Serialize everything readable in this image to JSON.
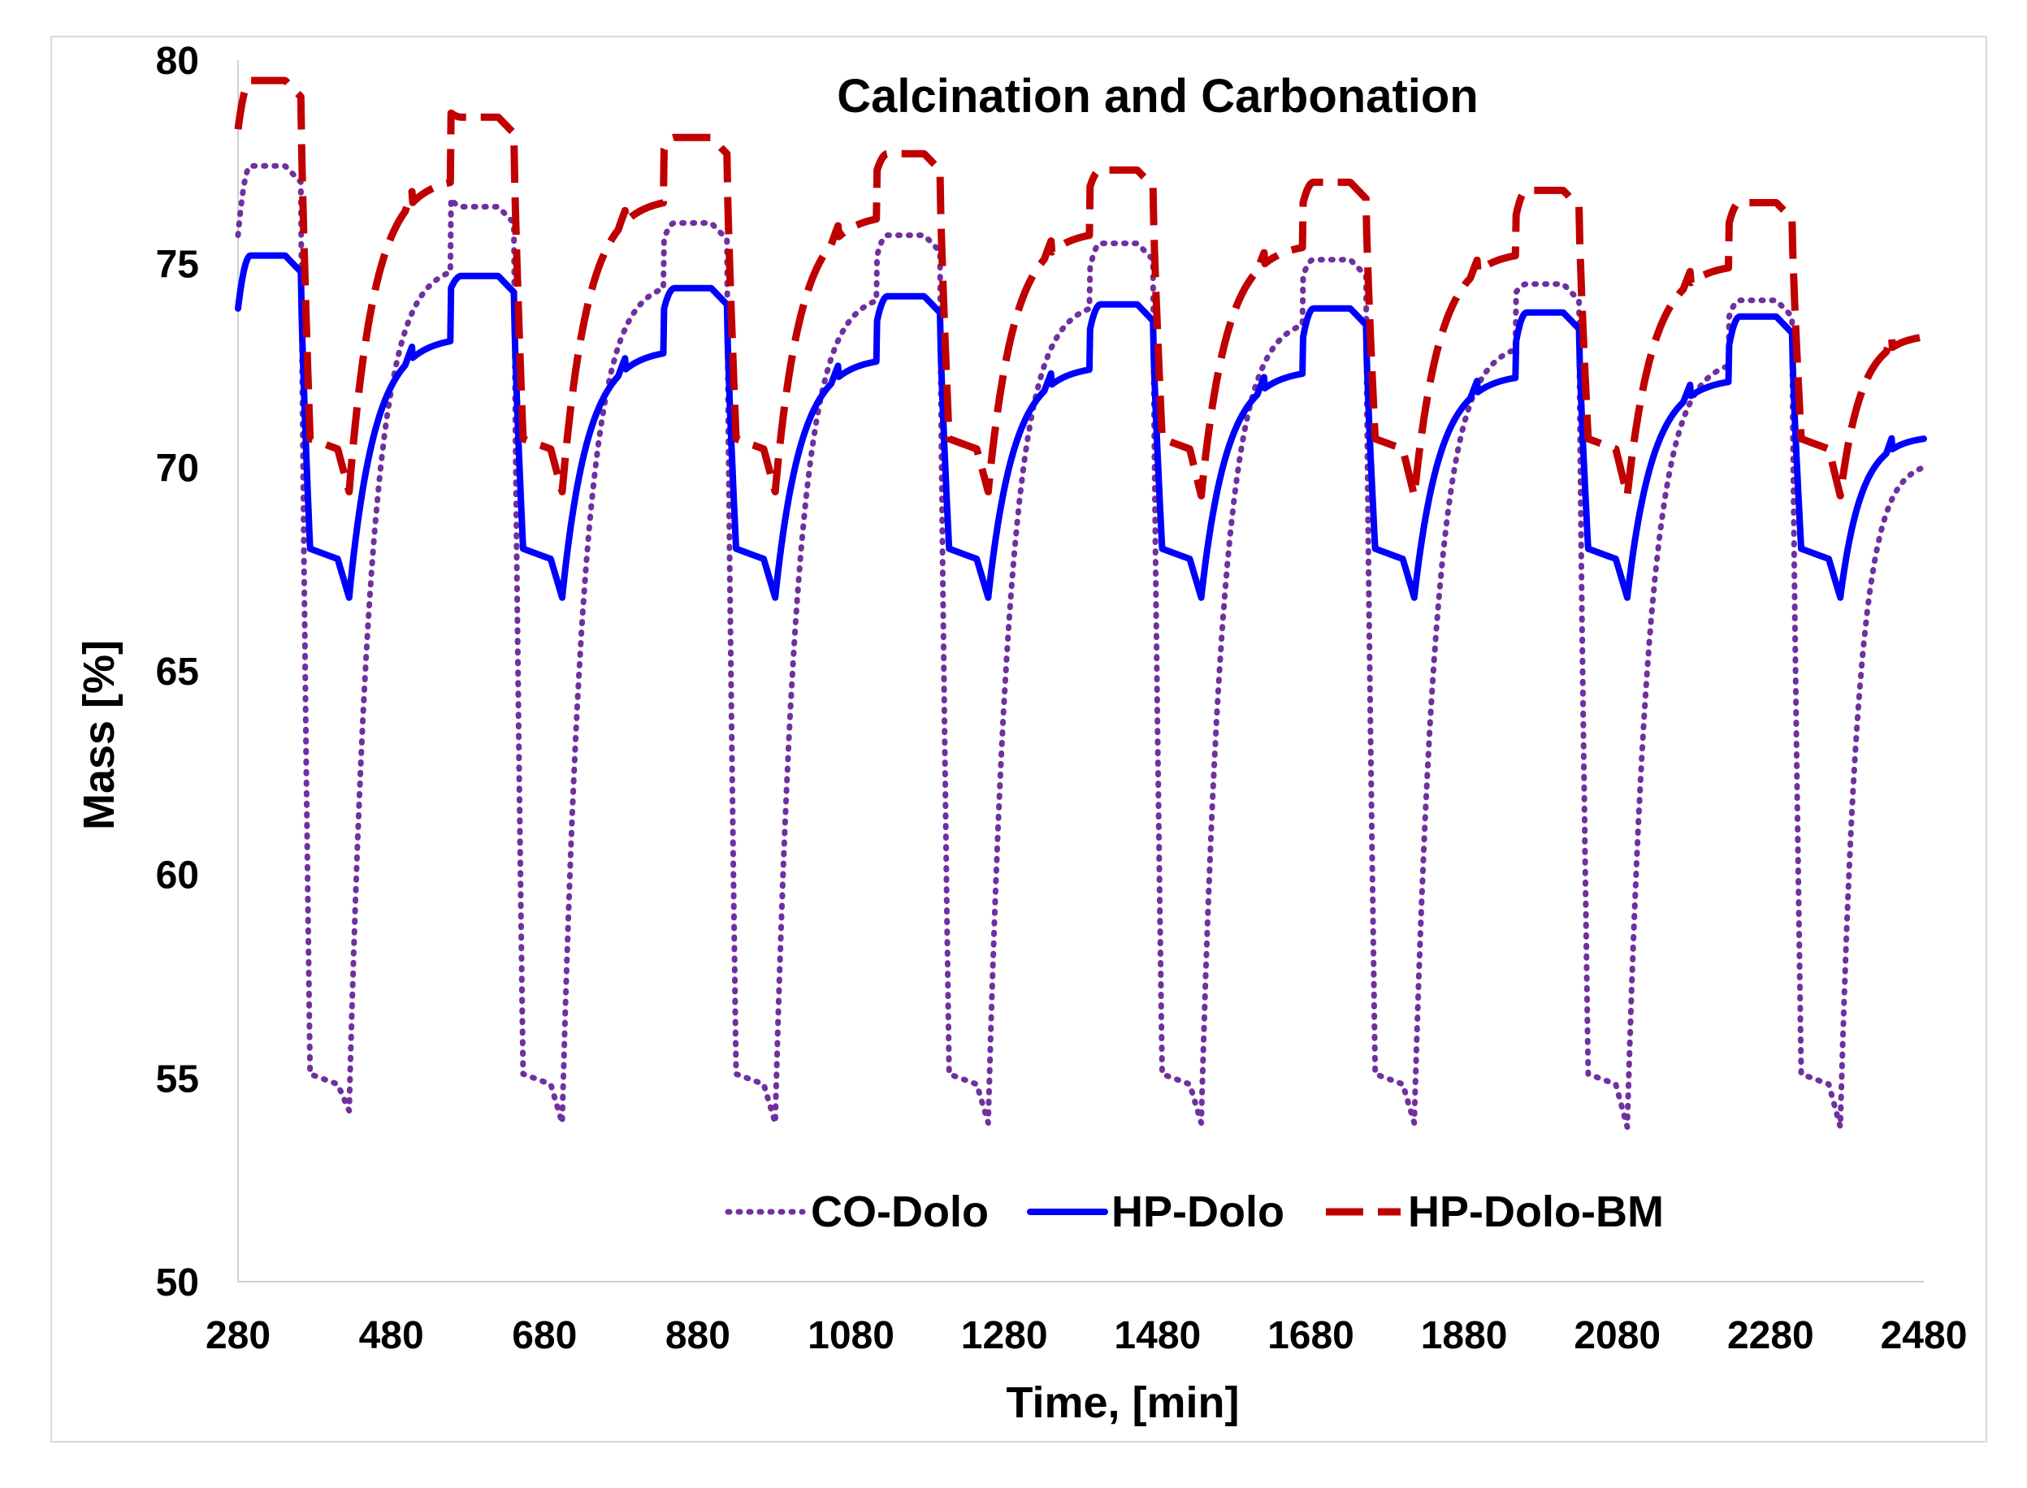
{
  "chart_data": {
    "type": "line",
    "title": "Calcination and Carbonation",
    "xlabel": "Time, [min]",
    "ylabel": "Mass [%]",
    "xlim": [
      280,
      2480
    ],
    "ylim": [
      50,
      80
    ],
    "xticks": [
      "280",
      "480",
      "680",
      "880",
      "1080",
      "1280",
      "1480",
      "1680",
      "1880",
      "2080",
      "2280",
      "2480"
    ],
    "yticks": [
      "50",
      "55",
      "60",
      "65",
      "70",
      "75",
      "80"
    ],
    "grid": false,
    "legend_position": "bottom-center",
    "cycle_period_min": 278,
    "cycle_starts_min": [
      280,
      558,
      836,
      1114,
      1392,
      1670,
      1948,
      2226
    ],
    "series": [
      {
        "name": "CO-Dolo",
        "style": "dotted",
        "color": "#7030a0",
        "start_value": 75.7,
        "end_value": 71.6,
        "plateau_max": [
          77.4,
          76.4,
          76.0,
          75.7,
          75.5,
          75.1,
          74.5,
          74.1
        ],
        "minimum": [
          54.2,
          53.9,
          53.9,
          53.9,
          53.9,
          53.9,
          53.8,
          53.8
        ],
        "low_shelf": 55.1
      },
      {
        "name": "HP-Dolo",
        "style": "solid",
        "color": "#0000ff",
        "start_value": 73.9,
        "end_value": 72.3,
        "plateau_max": [
          75.2,
          74.7,
          74.4,
          74.2,
          74.0,
          73.9,
          73.8,
          73.7
        ],
        "minimum": [
          66.8,
          66.8,
          66.8,
          66.8,
          66.8,
          66.8,
          66.8,
          66.8
        ],
        "low_shelf": 68.0
      },
      {
        "name": "HP-Dolo-BM",
        "style": "dashed",
        "color": "#c00000",
        "start_value": 78.3,
        "end_value": 74.8,
        "plateau_max": [
          79.5,
          78.6,
          78.1,
          77.7,
          77.3,
          77.0,
          76.8,
          76.5
        ],
        "minimum": [
          69.4,
          69.4,
          69.4,
          69.4,
          69.3,
          69.3,
          69.3,
          69.3
        ],
        "low_shelf": 70.7
      }
    ]
  }
}
